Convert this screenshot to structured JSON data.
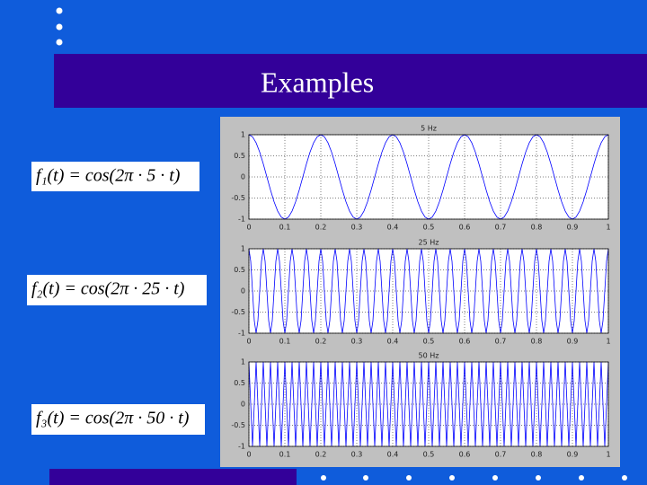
{
  "header": {
    "title": "Examples"
  },
  "equations": [
    "f₁(t) = cos(2π · 5 · t)",
    "f₂(t) = cos(2π · 25 · t)",
    "f₃(t) = cos(2π · 50 · t)"
  ],
  "chart_data": [
    {
      "type": "line",
      "title": "5 Hz",
      "color": "#0000ff",
      "grid": true,
      "xlim": [
        0,
        1
      ],
      "ylim": [
        -1,
        1
      ],
      "xticks": [
        0,
        0.1,
        0.2,
        0.3,
        0.4,
        0.5,
        0.6,
        0.7,
        0.8,
        0.9,
        1
      ],
      "yticks": [
        -1,
        -0.5,
        0,
        0.5,
        1
      ],
      "x": [
        0,
        0.01,
        0.02,
        0.03,
        0.04,
        0.05,
        0.06,
        0.07,
        0.08,
        0.09,
        0.1,
        0.11,
        0.12,
        0.13,
        0.14,
        0.15,
        0.16,
        0.17,
        0.18,
        0.19,
        0.2,
        0.21,
        0.22,
        0.23,
        0.24,
        0.25,
        0.26,
        0.27,
        0.28,
        0.29,
        0.3,
        0.31,
        0.32,
        0.33,
        0.34,
        0.35,
        0.36,
        0.37,
        0.38,
        0.39,
        0.4,
        0.41,
        0.42,
        0.43,
        0.44,
        0.45,
        0.46,
        0.47,
        0.48,
        0.49,
        0.5,
        0.51,
        0.52,
        0.53,
        0.54,
        0.55,
        0.56,
        0.57,
        0.58,
        0.59,
        0.6,
        0.61,
        0.62,
        0.63,
        0.64,
        0.65,
        0.66,
        0.67,
        0.68,
        0.69,
        0.7,
        0.71,
        0.72,
        0.73,
        0.74,
        0.75,
        0.76,
        0.77,
        0.78,
        0.79,
        0.8,
        0.81,
        0.82,
        0.83,
        0.84,
        0.85,
        0.86,
        0.87,
        0.88,
        0.89,
        0.9,
        0.91,
        0.92,
        0.93,
        0.94,
        0.95,
        0.96,
        0.97,
        0.98,
        0.99,
        1
      ],
      "values": [
        1,
        0.951,
        0.809,
        0.588,
        0.309,
        0,
        -0.309,
        -0.588,
        -0.809,
        -0.951,
        -1,
        -0.951,
        -0.809,
        -0.588,
        -0.309,
        0,
        0.309,
        0.588,
        0.809,
        0.951,
        1,
        0.951,
        0.809,
        0.588,
        0.309,
        0,
        -0.309,
        -0.588,
        -0.809,
        -0.951,
        -1,
        -0.951,
        -0.809,
        -0.588,
        -0.309,
        0,
        0.309,
        0.588,
        0.809,
        0.951,
        1,
        0.951,
        0.809,
        0.588,
        0.309,
        0,
        -0.309,
        -0.588,
        -0.809,
        -0.951,
        -1,
        -0.951,
        -0.809,
        -0.588,
        -0.309,
        0,
        0.309,
        0.588,
        0.809,
        0.951,
        1,
        0.951,
        0.809,
        0.588,
        0.309,
        0,
        -0.309,
        -0.588,
        -0.809,
        -0.951,
        -1,
        -0.951,
        -0.809,
        -0.588,
        -0.309,
        0,
        0.309,
        0.588,
        0.809,
        0.951,
        1,
        0.951,
        0.809,
        0.588,
        0.309,
        0,
        -0.309,
        -0.588,
        -0.809,
        -0.951,
        -1,
        -0.951,
        -0.809,
        -0.588,
        -0.309,
        0,
        0.309,
        0.588,
        0.809,
        0.951,
        1
      ]
    },
    {
      "type": "line",
      "title": "25 Hz",
      "color": "#0000ff",
      "grid": true,
      "xlim": [
        0,
        1
      ],
      "ylim": [
        -1,
        1
      ],
      "xticks": [
        0,
        0.1,
        0.2,
        0.3,
        0.4,
        0.5,
        0.6,
        0.7,
        0.8,
        0.9,
        1
      ],
      "yticks": [
        -1,
        -0.5,
        0,
        0.5,
        1
      ],
      "x": [
        0,
        0.005,
        0.01,
        0.015,
        0.02,
        0.025,
        0.03,
        0.035,
        0.04,
        0.045,
        0.05,
        0.055,
        0.06,
        0.065,
        0.07,
        0.075,
        0.08,
        0.085,
        0.09,
        0.095,
        0.1,
        0.105,
        0.11,
        0.115,
        0.12,
        0.125,
        0.13,
        0.135,
        0.14,
        0.145,
        0.15,
        0.155,
        0.16,
        0.165,
        0.17,
        0.175,
        0.18,
        0.185,
        0.19,
        0.195,
        0.2,
        0.205,
        0.21,
        0.215,
        0.22,
        0.225,
        0.23,
        0.235,
        0.24,
        0.245,
        0.25,
        0.255,
        0.26,
        0.265,
        0.27,
        0.275,
        0.28,
        0.285,
        0.29,
        0.295,
        0.3,
        0.305,
        0.31,
        0.315,
        0.32,
        0.325,
        0.33,
        0.335,
        0.34,
        0.345,
        0.35,
        0.355,
        0.36,
        0.365,
        0.37,
        0.375,
        0.38,
        0.385,
        0.39,
        0.395,
        0.4,
        0.405,
        0.41,
        0.415,
        0.42,
        0.425,
        0.43,
        0.435,
        0.44,
        0.445,
        0.45,
        0.455,
        0.46,
        0.465,
        0.47,
        0.475,
        0.48,
        0.485,
        0.49,
        0.495,
        0.5,
        0.505,
        0.51,
        0.515,
        0.52,
        0.525,
        0.53,
        0.535,
        0.54,
        0.545,
        0.55,
        0.555,
        0.56,
        0.565,
        0.57,
        0.575,
        0.58,
        0.585,
        0.59,
        0.595,
        0.6,
        0.605,
        0.61,
        0.615,
        0.62,
        0.625,
        0.63,
        0.635,
        0.64,
        0.645,
        0.65,
        0.655,
        0.66,
        0.665,
        0.67,
        0.675,
        0.68,
        0.685,
        0.69,
        0.695,
        0.7,
        0.705,
        0.71,
        0.715,
        0.72,
        0.725,
        0.73,
        0.735,
        0.74,
        0.745,
        0.75,
        0.755,
        0.76,
        0.765,
        0.77,
        0.775,
        0.78,
        0.785,
        0.79,
        0.795,
        0.8,
        0.805,
        0.81,
        0.815,
        0.82,
        0.825,
        0.83,
        0.835,
        0.84,
        0.845,
        0.85,
        0.855,
        0.86,
        0.865,
        0.87,
        0.875,
        0.88,
        0.885,
        0.89,
        0.895,
        0.9,
        0.905,
        0.91,
        0.915,
        0.92,
        0.925,
        0.93,
        0.935,
        0.94,
        0.945,
        0.95,
        0.955,
        0.96,
        0.965,
        0.97,
        0.975,
        0.98,
        0.985,
        0.99,
        0.995,
        1
      ],
      "values": [
        1,
        0.707,
        0,
        -0.707,
        -1,
        -0.707,
        0,
        0.707,
        1,
        0.707,
        0,
        -0.707,
        -1,
        -0.707,
        0,
        0.707,
        1,
        0.707,
        0,
        -0.707,
        -1,
        -0.707,
        0,
        0.707,
        1,
        0.707,
        0,
        -0.707,
        -1,
        -0.707,
        0,
        0.707,
        1,
        0.707,
        0,
        -0.707,
        -1,
        -0.707,
        0,
        0.707,
        1,
        0.707,
        0,
        -0.707,
        -1,
        -0.707,
        0,
        0.707,
        1,
        0.707,
        0,
        -0.707,
        -1,
        -0.707,
        0,
        0.707,
        1,
        0.707,
        0,
        -0.707,
        -1,
        -0.707,
        0,
        0.707,
        1,
        0.707,
        0,
        -0.707,
        -1,
        -0.707,
        0,
        0.707,
        1,
        0.707,
        0,
        -0.707,
        -1,
        -0.707,
        0,
        0.707,
        1,
        0.707,
        0,
        -0.707,
        -1,
        -0.707,
        0,
        0.707,
        1,
        0.707,
        0,
        -0.707,
        -1,
        -0.707,
        0,
        0.707,
        1,
        0.707,
        0,
        -0.707,
        -1,
        -0.707,
        0,
        0.707,
        1,
        0.707,
        0,
        -0.707,
        -1,
        -0.707,
        0,
        0.707,
        1,
        0.707,
        0,
        -0.707,
        -1,
        -0.707,
        0,
        0.707,
        1,
        0.707,
        0,
        -0.707,
        -1,
        -0.707,
        0,
        0.707,
        1,
        0.707,
        0,
        -0.707,
        -1,
        -0.707,
        0,
        0.707,
        1,
        0.707,
        0,
        -0.707,
        -1,
        -0.707,
        0,
        0.707,
        1,
        0.707,
        0,
        -0.707,
        -1,
        -0.707,
        0,
        0.707,
        1,
        0.707,
        0,
        -0.707,
        -1,
        -0.707,
        0,
        0.707,
        1,
        0.707,
        0,
        -0.707,
        -1,
        -0.707,
        0,
        0.707,
        1,
        0.707,
        0,
        -0.707,
        -1,
        -0.707,
        0,
        0.707,
        1,
        0.707,
        0,
        -0.707,
        -1,
        -0.707,
        0,
        0.707,
        1,
        0.707,
        0,
        -0.707,
        -1,
        -0.707,
        0,
        0.707,
        1,
        0.707,
        0,
        -0.707,
        -1,
        -0.707,
        0,
        0.707,
        1
      ]
    },
    {
      "type": "line",
      "title": "50 Hz",
      "color": "#0000ff",
      "grid": true,
      "xlim": [
        0,
        1
      ],
      "ylim": [
        -1,
        1
      ],
      "xticks": [
        0,
        0.1,
        0.2,
        0.3,
        0.4,
        0.5,
        0.6,
        0.7,
        0.8,
        0.9,
        1
      ],
      "yticks": [
        -1,
        -0.5,
        0,
        0.5,
        1
      ],
      "x": [
        0,
        0.005,
        0.01,
        0.015,
        0.02,
        0.025,
        0.03,
        0.035,
        0.04,
        0.045,
        0.05,
        0.055,
        0.06,
        0.065,
        0.07,
        0.075,
        0.08,
        0.085,
        0.09,
        0.095,
        0.1,
        0.105,
        0.11,
        0.115,
        0.12,
        0.125,
        0.13,
        0.135,
        0.14,
        0.145,
        0.15,
        0.155,
        0.16,
        0.165,
        0.17,
        0.175,
        0.18,
        0.185,
        0.19,
        0.195,
        0.2,
        0.205,
        0.21,
        0.215,
        0.22,
        0.225,
        0.23,
        0.235,
        0.24,
        0.245,
        0.25,
        0.255,
        0.26,
        0.265,
        0.27,
        0.275,
        0.28,
        0.285,
        0.29,
        0.295,
        0.3,
        0.305,
        0.31,
        0.315,
        0.32,
        0.325,
        0.33,
        0.335,
        0.34,
        0.345,
        0.35,
        0.355,
        0.36,
        0.365,
        0.37,
        0.375,
        0.38,
        0.385,
        0.39,
        0.395,
        0.4,
        0.405,
        0.41,
        0.415,
        0.42,
        0.425,
        0.43,
        0.435,
        0.44,
        0.445,
        0.45,
        0.455,
        0.46,
        0.465,
        0.47,
        0.475,
        0.48,
        0.485,
        0.49,
        0.495,
        0.5,
        0.505,
        0.51,
        0.515,
        0.52,
        0.525,
        0.53,
        0.535,
        0.54,
        0.545,
        0.55,
        0.555,
        0.56,
        0.565,
        0.57,
        0.575,
        0.58,
        0.585,
        0.59,
        0.595,
        0.6,
        0.605,
        0.61,
        0.615,
        0.62,
        0.625,
        0.63,
        0.635,
        0.64,
        0.645,
        0.65,
        0.655,
        0.66,
        0.665,
        0.67,
        0.675,
        0.68,
        0.685,
        0.69,
        0.695,
        0.7,
        0.705,
        0.71,
        0.715,
        0.72,
        0.725,
        0.73,
        0.735,
        0.74,
        0.745,
        0.75,
        0.755,
        0.76,
        0.765,
        0.77,
        0.775,
        0.78,
        0.785,
        0.79,
        0.795,
        0.8,
        0.805,
        0.81,
        0.815,
        0.82,
        0.825,
        0.83,
        0.835,
        0.84,
        0.845,
        0.85,
        0.855,
        0.86,
        0.865,
        0.87,
        0.875,
        0.88,
        0.885,
        0.89,
        0.895,
        0.9,
        0.905,
        0.91,
        0.915,
        0.92,
        0.925,
        0.93,
        0.935,
        0.94,
        0.945,
        0.95,
        0.955,
        0.96,
        0.965,
        0.97,
        0.975,
        0.98,
        0.985,
        0.99,
        0.995,
        1
      ],
      "values": [
        1,
        0,
        -1,
        0,
        1,
        0,
        -1,
        0,
        1,
        0,
        -1,
        0,
        1,
        0,
        -1,
        0,
        1,
        0,
        -1,
        0,
        1,
        0,
        -1,
        0,
        1,
        0,
        -1,
        0,
        1,
        0,
        -1,
        0,
        1,
        0,
        -1,
        0,
        1,
        0,
        -1,
        0,
        1,
        0,
        -1,
        0,
        1,
        0,
        -1,
        0,
        1,
        0,
        -1,
        0,
        1,
        0,
        -1,
        0,
        1,
        0,
        -1,
        0,
        1,
        0,
        -1,
        0,
        1,
        0,
        -1,
        0,
        1,
        0,
        -1,
        0,
        1,
        0,
        -1,
        0,
        1,
        0,
        -1,
        0,
        1,
        0,
        -1,
        0,
        1,
        0,
        -1,
        0,
        1,
        0,
        -1,
        0,
        1,
        0,
        -1,
        0,
        1,
        0,
        -1,
        0,
        1,
        0,
        -1,
        0,
        1,
        0,
        -1,
        0,
        1,
        0,
        -1,
        0,
        1,
        0,
        -1,
        0,
        1,
        0,
        -1,
        0,
        1,
        0,
        -1,
        0,
        1,
        0,
        -1,
        0,
        1,
        0,
        -1,
        0,
        1,
        0,
        -1,
        0,
        1,
        0,
        -1,
        0,
        1,
        0,
        -1,
        0,
        1,
        0,
        -1,
        0,
        1,
        0,
        -1,
        0,
        1,
        0,
        -1,
        0,
        1,
        0,
        -1,
        0,
        1,
        0,
        -1,
        0,
        1,
        0,
        -1,
        0,
        1,
        0,
        -1,
        0,
        1,
        0,
        -1,
        0,
        1,
        0,
        -1,
        0,
        1,
        0,
        -1,
        0,
        1,
        0,
        -1,
        0,
        1,
        0,
        -1,
        0,
        1,
        0,
        -1,
        0,
        1,
        0,
        -1,
        0,
        1
      ]
    }
  ]
}
